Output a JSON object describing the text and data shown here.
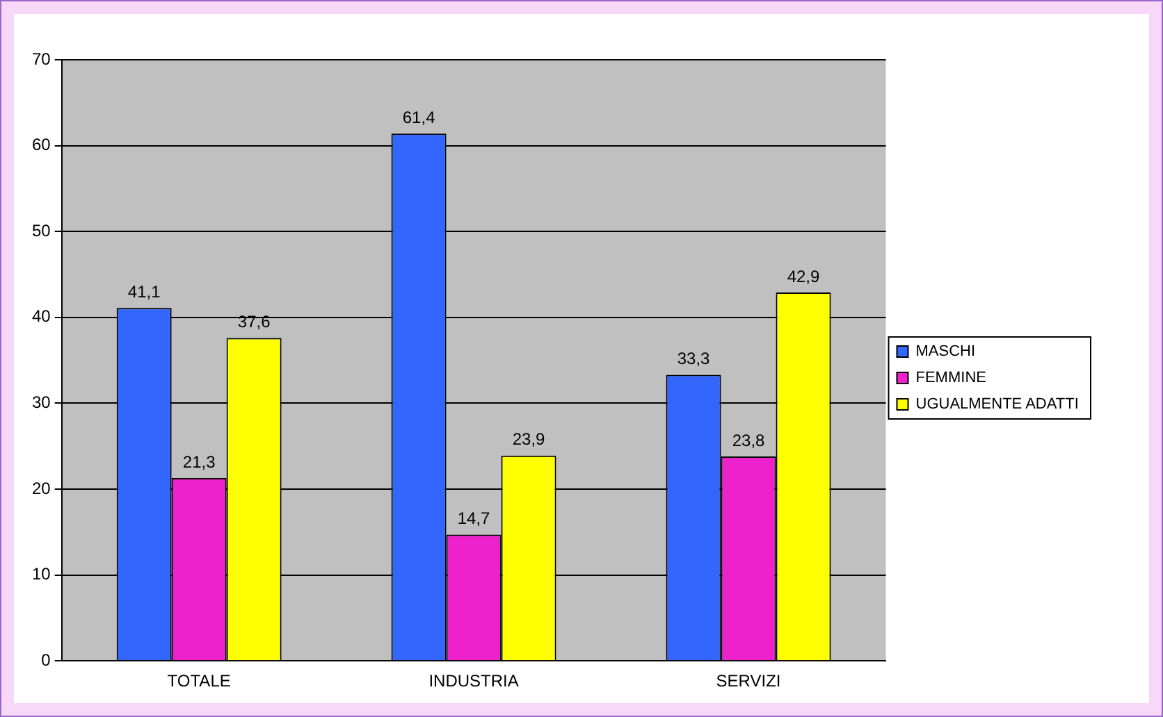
{
  "chart_data": {
    "type": "bar",
    "categories": [
      "TOTALE",
      "INDUSTRIA",
      "SERVIZI"
    ],
    "series": [
      {
        "name": "MASCHI",
        "color": "#3366ff",
        "values": [
          41.1,
          61.4,
          33.3
        ],
        "value_labels": [
          "41,1",
          "61,4",
          "33,3"
        ]
      },
      {
        "name": "FEMMINE",
        "color": "#ee22cc",
        "values": [
          21.3,
          14.7,
          23.8
        ],
        "value_labels": [
          "21,3",
          "14,7",
          "23,8"
        ]
      },
      {
        "name": "UGUALMENTE ADATTI",
        "color": "#ffff00",
        "values": [
          37.6,
          23.9,
          42.9
        ],
        "value_labels": [
          "37,6",
          "23,9",
          "42,9"
        ]
      }
    ],
    "ylim": [
      0,
      70
    ],
    "yticks": [
      0,
      10,
      20,
      30,
      40,
      50,
      60,
      70
    ],
    "grid": "y",
    "legend": "right"
  }
}
